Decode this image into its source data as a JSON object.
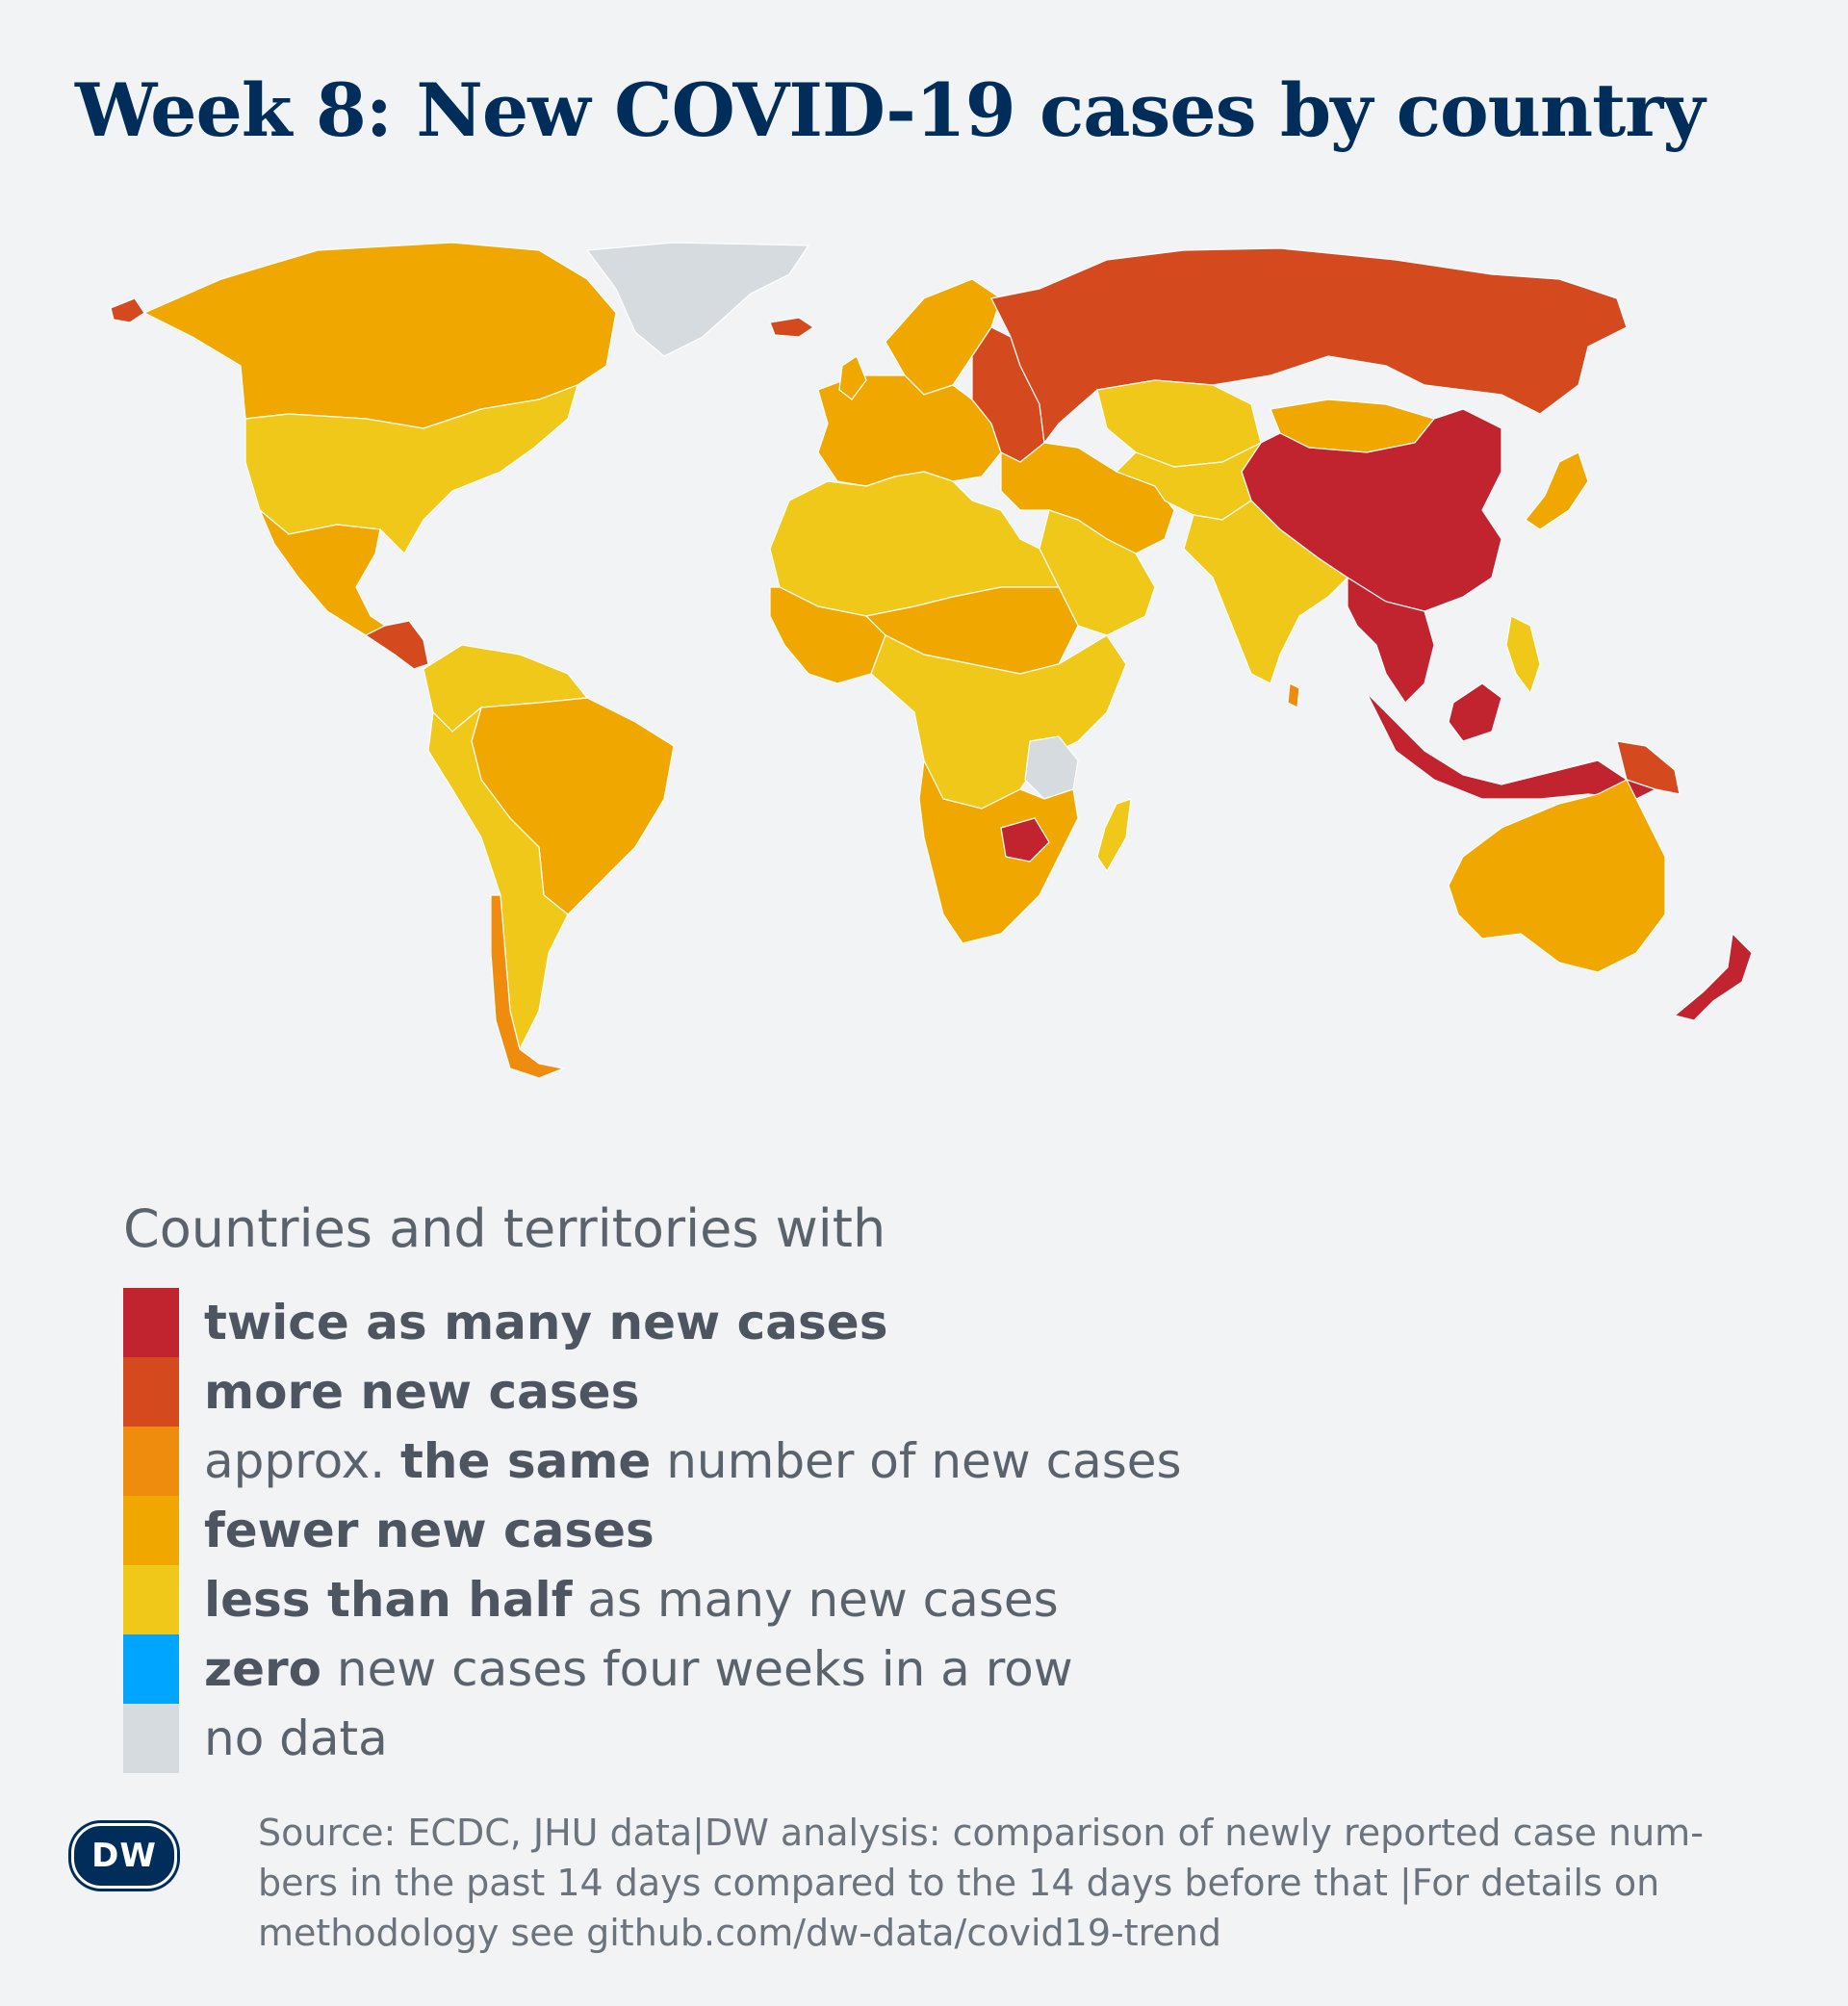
{
  "title": "Week 8: New COVID-19 cases by country",
  "colors": {
    "twice": "#c1232f",
    "more": "#d44a1e",
    "same": "#ef8c0e",
    "fewer": "#f0a800",
    "less_than_half": "#f0c819",
    "zero": "#00a5ff",
    "no_data": "#d6dbdf"
  },
  "legend": {
    "heading": "Countries and territories with",
    "items": [
      {
        "key": "twice",
        "bold": "twice as many new cases",
        "rest": ""
      },
      {
        "key": "more",
        "bold": "more new cases",
        "rest": ""
      },
      {
        "key": "same",
        "pre": "approx. ",
        "bold": "the same",
        "rest": " number of new cases"
      },
      {
        "key": "fewer",
        "bold": "fewer new cases",
        "rest": ""
      },
      {
        "key": "less_than_half",
        "bold": "less than half",
        "rest": " as many new cases"
      },
      {
        "key": "zero",
        "bold": "zero",
        "rest": " new cases four weeks in a row"
      },
      {
        "key": "no_data",
        "bold": "",
        "rest": "no data"
      }
    ]
  },
  "source": {
    "lines": [
      "Source: ECDC, JHU data|DW analysis: comparison of newly reported case num-",
      "bers in the past 14 days compared to the 14 days before that |For details on",
      "methodology see github.com/dw-data/covid19-trend"
    ]
  },
  "logo": {
    "text": "DW",
    "icon": "dw-logo"
  },
  "map_regions": {
    "greenland": "no_data",
    "canada": "fewer",
    "usa": "less_than_half",
    "mexico": "fewer",
    "central_america": "more",
    "south_america_north": "less_than_half",
    "brazil": "fewer",
    "andes": "less_than_half",
    "chile": "same",
    "europe": "fewer",
    "scandinavia": "fewer",
    "eastern_europe": "more",
    "russia": "more",
    "kazakhstan": "less_than_half",
    "mongolia": "fewer",
    "china": "twice",
    "middle_east": "fewer",
    "arabia": "less_than_half",
    "india": "less_than_half",
    "southeast_asia": "twice",
    "indonesia": "twice",
    "png": "more",
    "australia": "fewer",
    "new_zealand": "twice",
    "japan": "fewer",
    "north_africa": "less_than_half",
    "sahel": "fewer",
    "west_africa": "fewer",
    "central_africa": "less_than_half",
    "tanzania": "no_data",
    "southern_africa": "fewer",
    "zimbabwe": "twice",
    "madagascar": "less_than_half"
  }
}
